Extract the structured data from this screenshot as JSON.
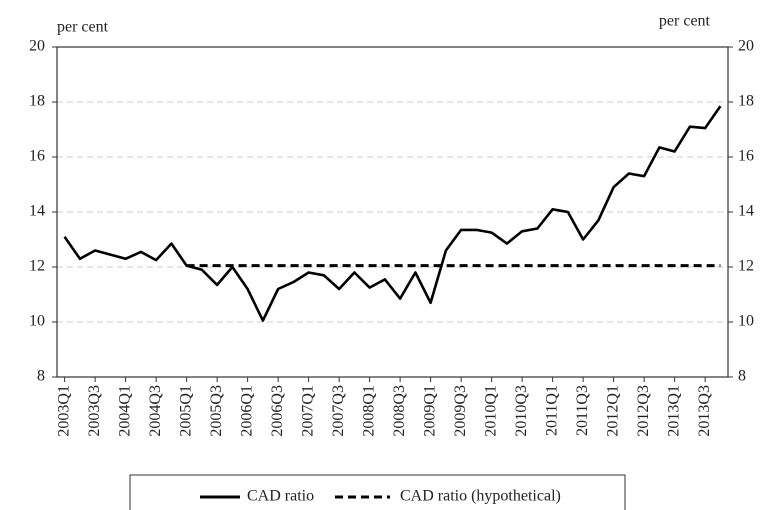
{
  "chart_data": {
    "type": "line",
    "ylabel": "per cent",
    "y2label": "per cent",
    "categories": [
      "2003Q1",
      null,
      "2003Q3",
      null,
      "2004Q1",
      null,
      "2004Q3",
      null,
      "2005Q1",
      null,
      "2005Q3",
      null,
      "2006Q1",
      null,
      "2006Q3",
      null,
      "2007Q1",
      null,
      "2007Q3",
      null,
      "2008Q1",
      null,
      "2008Q3",
      null,
      "2009Q1",
      null,
      "2009Q3",
      null,
      "2010Q1",
      null,
      "2010Q3",
      null,
      "2011Q1",
      null,
      "2011Q3",
      null,
      "2012Q1",
      null,
      "2012Q3",
      null,
      "2013Q1",
      null,
      "2013Q3",
      null
    ],
    "series": [
      {
        "name": "CAD ratio",
        "color": "#000000",
        "style": "solid",
        "values": [
          13.1,
          12.3,
          12.6,
          12.45,
          12.3,
          12.55,
          12.25,
          12.85,
          12.05,
          11.9,
          11.35,
          12.0,
          11.2,
          10.05,
          11.2,
          11.45,
          11.8,
          11.7,
          11.2,
          11.8,
          11.25,
          11.55,
          10.85,
          11.8,
          10.7,
          12.6,
          13.35,
          13.35,
          13.25,
          12.85,
          13.3,
          13.4,
          14.1,
          14.0,
          13.0,
          13.7,
          14.9,
          15.4,
          15.3,
          16.35,
          16.2,
          17.1,
          17.05,
          17.85
        ]
      },
      {
        "name": "CAD ratio (hypothetical)",
        "color": "#000000",
        "style": "dashed",
        "values": [
          null,
          null,
          null,
          null,
          null,
          null,
          null,
          null,
          12.05,
          12.05,
          12.05,
          12.05,
          12.05,
          12.05,
          12.05,
          12.05,
          12.05,
          12.05,
          12.05,
          12.05,
          12.05,
          12.05,
          12.05,
          12.05,
          12.05,
          12.05,
          12.05,
          12.05,
          12.05,
          12.05,
          12.05,
          12.05,
          12.05,
          12.05,
          12.05,
          12.05,
          12.05,
          12.05,
          12.05,
          12.05,
          12.05,
          12.05,
          12.05,
          12.05
        ]
      }
    ],
    "ylim": [
      8,
      20
    ],
    "yticks": [
      8,
      10,
      12,
      14,
      16,
      18,
      20
    ],
    "y2lim": [
      8,
      20
    ],
    "y2ticks": [
      8,
      10,
      12,
      14,
      16,
      18,
      20
    ],
    "grid": true
  }
}
